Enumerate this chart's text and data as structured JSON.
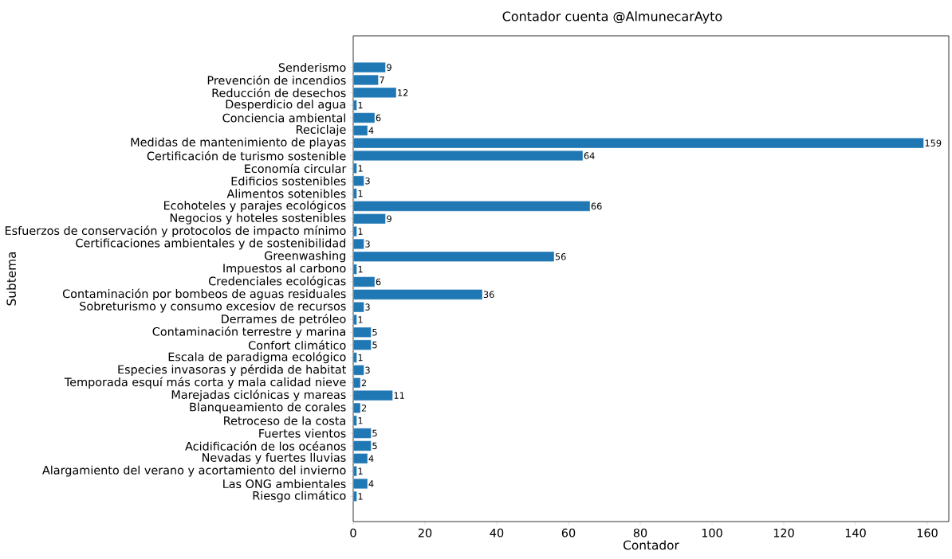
{
  "chart_data": {
    "type": "bar",
    "orientation": "horizontal",
    "title": "Contador cuenta @AlmunecarAyto",
    "xlabel": "Contador",
    "ylabel": "Subtema",
    "categories": [
      "Senderismo",
      "Prevención de incendios",
      "Reducción de desechos",
      "Desperdicio del agua",
      "Conciencia ambiental",
      "Reciclaje",
      "Medidas de mantenimiento de playas",
      "Certificación de turismo sostenible",
      "Economía circular",
      "Edificios sostenibles",
      "Alimentos sotenibles",
      "Ecohoteles y parajes ecológicos",
      "Negocios y hoteles sostenibles",
      "Esfuerzos de conservación y protocolos de impacto mínimo",
      "Certificaciones ambientales y de sostenibilidad",
      "Greenwashing",
      "Impuestos al carbono",
      "Credenciales ecológicas",
      "Contaminación por bombeos de aguas residuales",
      "Sobreturismo y consumo excesiov de recursos",
      "Derrames de petróleo",
      "Contaminación terrestre y marina",
      "Confort climático",
      "Escala de paradigma ecológico",
      "Especies invasoras y pérdida de habitat",
      "Temporada esquí más corta y mala calidad nieve",
      "Marejadas ciclónicas y mareas",
      "Blanqueamiento de corales",
      "Retroceso de la costa",
      "Fuertes vientos",
      "Acidificación de los océanos",
      "Nevadas y fuertes lluvias",
      "Alargamiento del verano y acortamiento del invierno",
      "Las ONG ambientales",
      "Riesgo climático"
    ],
    "values": [
      9,
      7,
      12,
      1,
      6,
      4,
      159,
      64,
      1,
      3,
      1,
      66,
      9,
      1,
      3,
      56,
      1,
      6,
      36,
      3,
      1,
      5,
      5,
      1,
      3,
      2,
      11,
      2,
      1,
      5,
      5,
      4,
      1,
      4,
      1
    ],
    "color": "#1f77b4",
    "data_labels": true,
    "xlim": [
      0,
      166
    ],
    "xticks": [
      0,
      20,
      40,
      60,
      80,
      100,
      120,
      140,
      160
    ]
  }
}
